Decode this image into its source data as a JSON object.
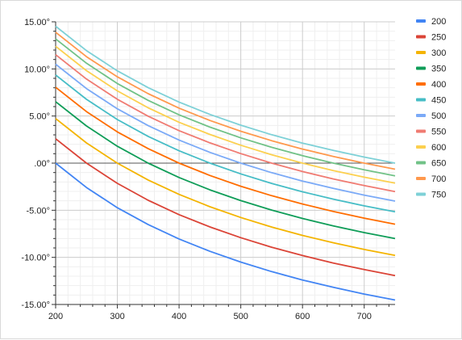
{
  "chart_data": {
    "type": "line",
    "title": "",
    "xlabel": "",
    "ylabel": "",
    "xlim": [
      200,
      750
    ],
    "ylim": [
      -15,
      15
    ],
    "x_ticks": [
      200,
      300,
      400,
      500,
      600,
      700
    ],
    "x_tick_labels": [
      "200",
      "300",
      "400",
      "500",
      "600",
      "700"
    ],
    "y_ticks": [
      15,
      10,
      5,
      0,
      -5,
      -10,
      -15
    ],
    "y_tick_labels": [
      "15.00°",
      "10.00°",
      "5.00°",
      ".00°",
      "-5.00°",
      "-10.00°",
      "-15.00°"
    ],
    "grid": true,
    "legend_position": "right",
    "x": [
      200,
      250,
      300,
      350,
      400,
      450,
      500,
      550,
      600,
      650,
      700,
      750
    ],
    "series": [
      {
        "name": "200",
        "color": "#4285f4",
        "values": [
          0.0,
          -2.59,
          -4.73,
          -6.52,
          -8.05,
          -9.36,
          -10.5,
          -11.51,
          -12.4,
          -13.18,
          -13.89,
          -14.53
        ]
      },
      {
        "name": "250",
        "color": "#db4437",
        "values": [
          2.59,
          0.0,
          -2.14,
          -3.94,
          -5.47,
          -6.77,
          -7.91,
          -8.92,
          -9.81,
          -10.6,
          -11.3,
          -11.94
        ]
      },
      {
        "name": "300",
        "color": "#f4b400",
        "values": [
          4.73,
          2.14,
          0.0,
          -1.79,
          -3.32,
          -4.63,
          -5.77,
          -6.78,
          -7.67,
          -8.45,
          -9.16,
          -9.8
        ]
      },
      {
        "name": "350",
        "color": "#0f9d58",
        "values": [
          6.52,
          3.94,
          1.79,
          0.0,
          -1.53,
          -2.84,
          -3.98,
          -4.98,
          -5.87,
          -6.66,
          -7.37,
          -8.01
        ]
      },
      {
        "name": "400",
        "color": "#ff6d00",
        "values": [
          8.05,
          5.47,
          3.32,
          1.53,
          0.0,
          -1.31,
          -2.45,
          -3.45,
          -4.34,
          -5.13,
          -5.84,
          -6.48
        ]
      },
      {
        "name": "450",
        "color": "#46bdc6",
        "values": [
          9.36,
          6.77,
          4.63,
          2.84,
          1.31,
          0.0,
          -1.14,
          -2.15,
          -3.04,
          -3.82,
          -4.53,
          -5.17
        ]
      },
      {
        "name": "500",
        "color": "#7baaf7",
        "values": [
          10.5,
          7.91,
          5.77,
          3.98,
          2.45,
          1.14,
          0.0,
          -1.01,
          -1.9,
          -2.68,
          -3.39,
          -4.03
        ]
      },
      {
        "name": "550",
        "color": "#f07b72",
        "values": [
          11.51,
          8.92,
          6.78,
          4.98,
          3.45,
          2.15,
          1.01,
          0.0,
          -0.89,
          -1.68,
          -2.38,
          -3.02
        ]
      },
      {
        "name": "600",
        "color": "#fcd04f",
        "values": [
          12.4,
          9.81,
          7.67,
          5.87,
          4.34,
          3.04,
          1.9,
          0.89,
          0.0,
          -0.79,
          -1.49,
          -2.13
        ]
      },
      {
        "name": "650",
        "color": "#71c287",
        "values": [
          13.18,
          10.6,
          8.45,
          6.66,
          5.13,
          3.82,
          2.68,
          1.68,
          0.79,
          0.0,
          -0.71,
          -1.35
        ]
      },
      {
        "name": "700",
        "color": "#ff994d",
        "values": [
          13.89,
          11.3,
          9.16,
          7.37,
          5.84,
          4.53,
          3.39,
          2.38,
          1.49,
          0.71,
          0.0,
          -0.64
        ]
      },
      {
        "name": "750",
        "color": "#7ed1d7",
        "values": [
          14.53,
          11.94,
          9.8,
          8.01,
          6.48,
          5.17,
          4.03,
          3.02,
          2.13,
          1.35,
          0.64,
          0.0
        ]
      }
    ]
  }
}
